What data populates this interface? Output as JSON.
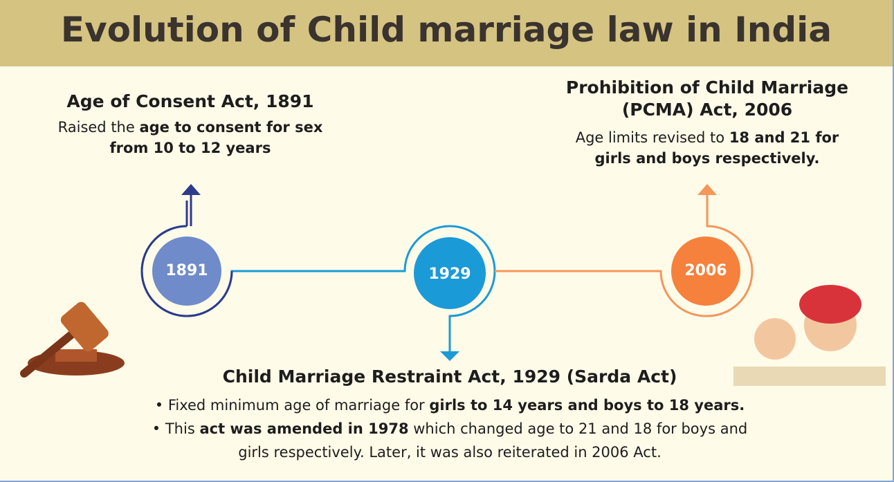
{
  "title": "Evolution of Child marriage law in India",
  "nodes": [
    {
      "year": "1891",
      "title": [
        "Age of Consent Act, 1891"
      ],
      "description": [
        [
          {
            "text": "Raised the ",
            "bold": false
          },
          {
            "text": "age to consent for sex",
            "bold": true
          }
        ],
        [
          {
            "text": "from 10 to 12 years",
            "bold": true
          }
        ]
      ]
    },
    {
      "year": "1929",
      "title": [
        "Child Marriage Restraint Act, 1929 (Sarda Act)"
      ],
      "description": [
        [
          {
            "text": "• Fixed minimum age of marriage for ",
            "bold": false
          },
          {
            "text": "girls to 14 years and boys to 18 years.",
            "bold": true
          }
        ],
        [
          {
            "text": "• This ",
            "bold": false
          },
          {
            "text": "act was amended in 1978",
            "bold": true
          },
          {
            "text": " which changed age to 21 and 18 for boys and",
            "bold": false
          }
        ],
        [
          {
            "text": "girls respectively. Later, it was also reiterated in 2006 Act.",
            "bold": false
          }
        ]
      ]
    },
    {
      "year": "2006",
      "title": [
        "Prohibition of Child Marriage",
        "(PCMA) Act, 2006"
      ],
      "description": [
        [
          {
            "text": "Age limits revised to ",
            "bold": false
          },
          {
            "text": "18 and 21 for",
            "bold": true
          }
        ],
        [
          {
            "text": "girls and boys respectively.",
            "bold": true
          }
        ]
      ]
    }
  ]
}
